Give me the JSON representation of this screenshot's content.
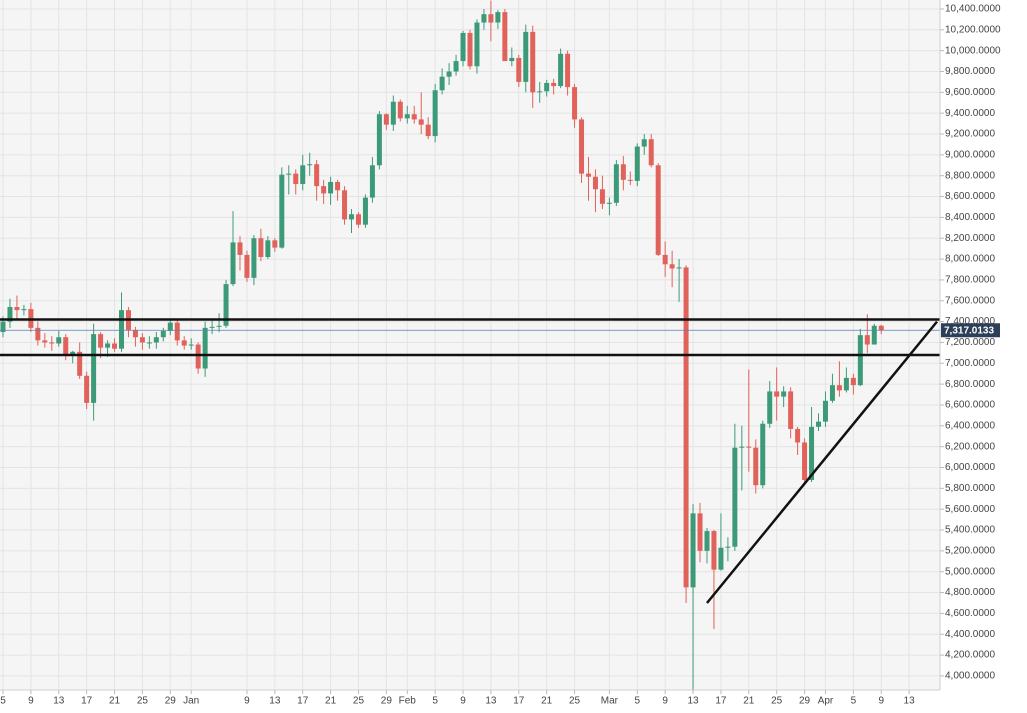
{
  "chart_data": {
    "type": "candlestick",
    "categories": [
      "Dec 5",
      "Dec 6",
      "Dec 7",
      "Dec 8",
      "Dec 9",
      "Dec 10",
      "Dec 11",
      "Dec 12",
      "Dec 13",
      "Dec 14",
      "Dec 15",
      "Dec 16",
      "Dec 17",
      "Dec 18",
      "Dec 19",
      "Dec 20",
      "Dec 21",
      "Dec 22",
      "Dec 23",
      "Dec 24",
      "Dec 25",
      "Dec 26",
      "Dec 27",
      "Dec 28",
      "Dec 29",
      "Dec 30",
      "Dec 31",
      "Jan 1",
      "Jan 2",
      "Jan 3",
      "Jan 4",
      "Jan 5",
      "Jan 6",
      "Jan 7",
      "Jan 8",
      "Jan 9",
      "Jan 10",
      "Jan 11",
      "Jan 12",
      "Jan 13",
      "Jan 14",
      "Jan 15",
      "Jan 16",
      "Jan 17",
      "Jan 18",
      "Jan 19",
      "Jan 20",
      "Jan 21",
      "Jan 22",
      "Jan 23",
      "Jan 24",
      "Jan 25",
      "Jan 26",
      "Jan 27",
      "Jan 28",
      "Jan 29",
      "Jan 30",
      "Jan 31",
      "Feb 1",
      "Feb 2",
      "Feb 3",
      "Feb 4",
      "Feb 5",
      "Feb 6",
      "Feb 7",
      "Feb 8",
      "Feb 9",
      "Feb 10",
      "Feb 11",
      "Feb 12",
      "Feb 13",
      "Feb 14",
      "Feb 15",
      "Feb 16",
      "Feb 17",
      "Feb 18",
      "Feb 19",
      "Feb 20",
      "Feb 21",
      "Feb 22",
      "Feb 23",
      "Feb 24",
      "Feb 25",
      "Feb 26",
      "Feb 27",
      "Feb 28",
      "Feb 29",
      "Mar 1",
      "Mar 2",
      "Mar 3",
      "Mar 4",
      "Mar 5",
      "Mar 6",
      "Mar 7",
      "Mar 8",
      "Mar 9",
      "Mar 10",
      "Mar 11",
      "Mar 12",
      "Mar 13",
      "Mar 14",
      "Mar 15",
      "Mar 16",
      "Mar 17",
      "Mar 18",
      "Mar 19",
      "Mar 20",
      "Mar 21",
      "Mar 22",
      "Mar 23",
      "Mar 24",
      "Mar 25",
      "Mar 26",
      "Mar 27",
      "Mar 28",
      "Mar 29",
      "Mar 30",
      "Mar 31",
      "Apr 1",
      "Apr 2",
      "Apr 3",
      "Apr 4",
      "Apr 5",
      "Apr 6",
      "Apr 7",
      "Apr 8",
      "Apr 9"
    ],
    "open": [
      7300,
      7400,
      7540,
      7510,
      7520,
      7340,
      7220,
      7200,
      7190,
      7250,
      7070,
      7110,
      6880,
      6620,
      7280,
      7150,
      7190,
      7140,
      7510,
      7320,
      7250,
      7200,
      7200,
      7250,
      7310,
      7390,
      7220,
      7170,
      7180,
      6950,
      7340,
      7350,
      7360,
      7760,
      8160,
      8040,
      7820,
      8200,
      8020,
      8180,
      8110,
      8810,
      8820,
      8720,
      8900,
      8910,
      8700,
      8630,
      8740,
      8660,
      8380,
      8430,
      8330,
      8590,
      8900,
      9390,
      9290,
      9510,
      9350,
      9390,
      9340,
      9290,
      9180,
      9620,
      9750,
      9800,
      9900,
      10170,
      9850,
      10270,
      10350,
      10270,
      10370,
      9900,
      9930,
      9700,
      10180,
      9600,
      9610,
      9690,
      9660,
      9970,
      9650,
      9340,
      8820,
      8790,
      8670,
      8530,
      8540,
      8910,
      8760,
      8750,
      9080,
      9150,
      8900,
      8040,
      7950,
      7910,
      7920,
      4850,
      5560,
      5200,
      5390,
      5020,
      5230,
      5240,
      6190,
      6200,
      6190,
      5830,
      6420,
      6730,
      6680,
      6730,
      6370,
      6240,
      5880,
      6390,
      6440,
      6640,
      6790,
      6740,
      6860,
      6790,
      7270,
      7180,
      7360
    ],
    "high": [
      7450,
      7620,
      7650,
      7560,
      7580,
      7400,
      7290,
      7260,
      7310,
      7280,
      7120,
      7200,
      6920,
      7380,
      7300,
      7220,
      7240,
      7680,
      7540,
      7350,
      7290,
      7260,
      7300,
      7340,
      7420,
      7410,
      7260,
      7240,
      7200,
      7400,
      7420,
      7480,
      7800,
      8460,
      8220,
      8080,
      8230,
      8290,
      8220,
      8200,
      8880,
      8900,
      8860,
      9000,
      9020,
      8950,
      8760,
      8790,
      8760,
      8700,
      8480,
      8450,
      8620,
      8980,
      9420,
      9400,
      9570,
      9530,
      9470,
      9470,
      9600,
      9360,
      9680,
      9830,
      9880,
      9960,
      10190,
      10200,
      10300,
      10400,
      10480,
      10390,
      10400,
      10030,
      9960,
      10250,
      10240,
      9700,
      9720,
      9730,
      10020,
      10000,
      9680,
      9360,
      8980,
      8860,
      8800,
      8590,
      8950,
      8990,
      8840,
      9110,
      9200,
      9200,
      8920,
      8170,
      8080,
      8000,
      7940,
      5650,
      5660,
      5420,
      5400,
      5560,
      5330,
      6420,
      6400,
      6940,
      6270,
      6450,
      6830,
      6960,
      6780,
      6770,
      6390,
      6280,
      6580,
      6520,
      6730,
      6900,
      7020,
      6960,
      6900,
      7330,
      7470,
      7380,
      7370
    ],
    "low": [
      7250,
      7340,
      7430,
      7460,
      7300,
      7170,
      7150,
      7120,
      7160,
      7030,
      7000,
      6850,
      6560,
      6450,
      7050,
      7060,
      7110,
      7110,
      7250,
      7160,
      7130,
      7140,
      7140,
      7210,
      7270,
      7170,
      7130,
      7130,
      6900,
      6870,
      7280,
      7300,
      7340,
      7740,
      7890,
      7780,
      7750,
      7980,
      8000,
      8070,
      8100,
      8620,
      8620,
      8660,
      8800,
      8560,
      8530,
      8520,
      8560,
      8330,
      8250,
      8300,
      8300,
      8540,
      8860,
      9240,
      9230,
      9320,
      9300,
      9300,
      9200,
      9150,
      9120,
      9580,
      9670,
      9760,
      9850,
      9820,
      9780,
      10200,
      10090,
      10210,
      9900,
      9850,
      9650,
      9600,
      9450,
      9500,
      9560,
      9580,
      9640,
      9570,
      9260,
      8730,
      8560,
      8450,
      8480,
      8420,
      8510,
      8660,
      8710,
      8700,
      9000,
      8880,
      8030,
      7830,
      7730,
      7590,
      4700,
      3850,
      5090,
      5080,
      4450,
      5010,
      5100,
      5200,
      5780,
      5960,
      5750,
      5800,
      6380,
      6450,
      6580,
      6280,
      6120,
      5840,
      5860,
      6350,
      6390,
      6620,
      6680,
      6720,
      6700,
      6780,
      7100,
      7180,
      7280
    ],
    "close": [
      7400,
      7540,
      7510,
      7520,
      7340,
      7220,
      7200,
      7190,
      7250,
      7070,
      7110,
      6880,
      6620,
      7280,
      7150,
      7190,
      7140,
      7510,
      7320,
      7250,
      7200,
      7200,
      7250,
      7310,
      7390,
      7220,
      7170,
      7180,
      6950,
      7340,
      7350,
      7360,
      7760,
      8160,
      8040,
      7820,
      8200,
      8020,
      8180,
      8110,
      8810,
      8820,
      8720,
      8900,
      8910,
      8700,
      8630,
      8740,
      8660,
      8380,
      8430,
      8330,
      8590,
      8900,
      9390,
      9290,
      9510,
      9350,
      9390,
      9340,
      9290,
      9180,
      9620,
      9750,
      9800,
      9900,
      10170,
      9850,
      10270,
      10350,
      10270,
      10370,
      9900,
      9930,
      9700,
      10180,
      9600,
      9610,
      9690,
      9660,
      9970,
      9650,
      9340,
      8820,
      8790,
      8670,
      8530,
      8540,
      8910,
      8760,
      8750,
      9080,
      9150,
      8900,
      8040,
      7950,
      7910,
      7920,
      4850,
      5560,
      5200,
      5390,
      5020,
      5230,
      5240,
      6190,
      6200,
      6190,
      5830,
      6420,
      6730,
      6680,
      6730,
      6370,
      6240,
      5880,
      6390,
      6440,
      6640,
      6790,
      6740,
      6860,
      6790,
      7270,
      7180,
      7360,
      7317.0133
    ],
    "up_color": "#3d9a78",
    "down_color": "#e0625a",
    "xlim": [
      "Dec 5",
      "Apr 17"
    ],
    "xticks": [
      {
        "value": "Dec 5",
        "label": "5"
      },
      {
        "value": "Dec 9",
        "label": "9"
      },
      {
        "value": "Dec 13",
        "label": "13"
      },
      {
        "value": "Dec 17",
        "label": "17"
      },
      {
        "value": "Dec 21",
        "label": "21"
      },
      {
        "value": "Dec 25",
        "label": "25"
      },
      {
        "value": "Dec 29",
        "label": "29"
      },
      {
        "value": "Jan 1",
        "label": "Jan"
      },
      {
        "value": "Jan 9",
        "label": "9"
      },
      {
        "value": "Jan 13",
        "label": "13"
      },
      {
        "value": "Jan 17",
        "label": "17"
      },
      {
        "value": "Jan 21",
        "label": "21"
      },
      {
        "value": "Jan 25",
        "label": "25"
      },
      {
        "value": "Jan 29",
        "label": "29"
      },
      {
        "value": "Feb 1",
        "label": "Feb"
      },
      {
        "value": "Feb 5",
        "label": "5"
      },
      {
        "value": "Feb 9",
        "label": "9"
      },
      {
        "value": "Feb 13",
        "label": "13"
      },
      {
        "value": "Feb 17",
        "label": "17"
      },
      {
        "value": "Feb 21",
        "label": "21"
      },
      {
        "value": "Feb 25",
        "label": "25"
      },
      {
        "value": "Mar 1",
        "label": "Mar"
      },
      {
        "value": "Mar 5",
        "label": "5"
      },
      {
        "value": "Mar 9",
        "label": "9"
      },
      {
        "value": "Mar 13",
        "label": "13"
      },
      {
        "value": "Mar 17",
        "label": "17"
      },
      {
        "value": "Mar 21",
        "label": "21"
      },
      {
        "value": "Mar 25",
        "label": "25"
      },
      {
        "value": "Mar 29",
        "label": "29"
      },
      {
        "value": "Apr 1",
        "label": "Apr"
      },
      {
        "value": "Apr 5",
        "label": "5"
      },
      {
        "value": "Apr 9",
        "label": "9"
      },
      {
        "value": "Apr 13",
        "label": "13"
      }
    ],
    "ylim": [
      3865,
      10486
    ],
    "yticks": [
      {
        "value": 4000,
        "label": "4,000.0000"
      },
      {
        "value": 4200,
        "label": "4,200.0000"
      },
      {
        "value": 4400,
        "label": "4,400.0000"
      },
      {
        "value": 4600,
        "label": "4,600.0000"
      },
      {
        "value": 4800,
        "label": "4,800.0000"
      },
      {
        "value": 5000,
        "label": "5,000.0000"
      },
      {
        "value": 5200,
        "label": "5,200.0000"
      },
      {
        "value": 5400,
        "label": "5,400.0000"
      },
      {
        "value": 5600,
        "label": "5,600.0000"
      },
      {
        "value": 5800,
        "label": "5,800.0000"
      },
      {
        "value": 6000,
        "label": "6,000.0000"
      },
      {
        "value": 6200,
        "label": "6,200.0000"
      },
      {
        "value": 6400,
        "label": "6,400.0000"
      },
      {
        "value": 6600,
        "label": "6,600.0000"
      },
      {
        "value": 6800,
        "label": "6,800.0000"
      },
      {
        "value": 7000,
        "label": "7,000.0000"
      },
      {
        "value": 7200,
        "label": "7,200.0000"
      },
      {
        "value": 7400,
        "label": "7,400.0000"
      },
      {
        "value": 7600,
        "label": "7,600.0000"
      },
      {
        "value": 7800,
        "label": "7,800.0000"
      },
      {
        "value": 8000,
        "label": "8,000.0000"
      },
      {
        "value": 8200,
        "label": "8,200.0000"
      },
      {
        "value": 8400,
        "label": "8,400.0000"
      },
      {
        "value": 8600,
        "label": "8,600.0000"
      },
      {
        "value": 8800,
        "label": "8,800.0000"
      },
      {
        "value": 9000,
        "label": "9,000.0000"
      },
      {
        "value": 9200,
        "label": "9,200.0000"
      },
      {
        "value": 9400,
        "label": "9,400.0000"
      },
      {
        "value": 9600,
        "label": "9,600.0000"
      },
      {
        "value": 9800,
        "label": "9,800.0000"
      },
      {
        "value": 10000,
        "label": "10,000.0000"
      },
      {
        "value": 10200,
        "label": "10,200.0000"
      },
      {
        "value": 10400,
        "label": "10,400.0000"
      }
    ],
    "grid": true,
    "hlines": [
      7420,
      7080
    ],
    "trendline": {
      "x": [
        "Mar 15",
        "Apr 17"
      ],
      "y": [
        4700,
        7400
      ]
    },
    "last_price": {
      "value": 7317.0133,
      "label": "7,317.0133"
    }
  }
}
